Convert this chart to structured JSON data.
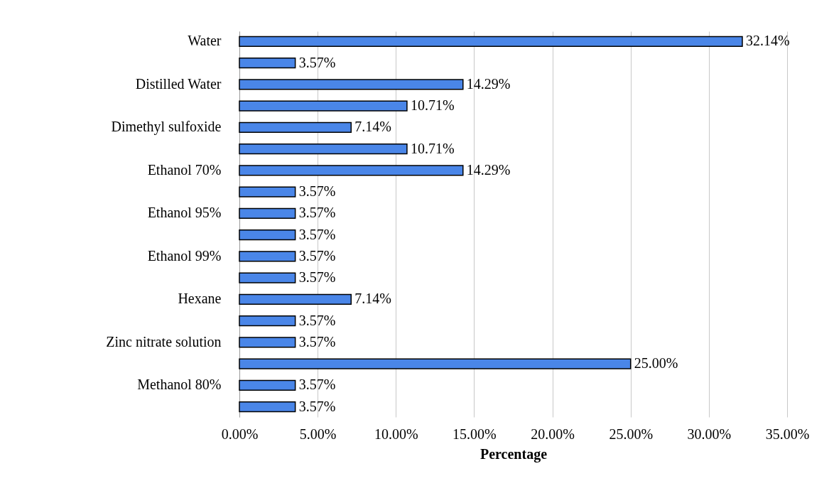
{
  "chart_data": {
    "type": "bar",
    "orientation": "horizontal",
    "xlabel": "Percentage",
    "categories": [
      "Water",
      null,
      "Distilled Water",
      null,
      "Dimethyl sulfoxide",
      null,
      "Ethanol 70%",
      null,
      "Ethanol 95%",
      null,
      "Ethanol 99%",
      null,
      "Hexane",
      null,
      "Zinc nitrate solution",
      null,
      "Methanol 80%",
      null
    ],
    "values": [
      32.14,
      3.57,
      14.29,
      10.71,
      7.14,
      10.71,
      14.29,
      3.57,
      3.57,
      3.57,
      3.57,
      3.57,
      7.14,
      3.57,
      3.57,
      25.0,
      3.57,
      3.57
    ],
    "value_labels": [
      "32.14%",
      "3.57%",
      "14.29%",
      "10.71%",
      "7.14%",
      "10.71%",
      "14.29%",
      "3.57%",
      "3.57%",
      "3.57%",
      "3.57%",
      "3.57%",
      "7.14%",
      "3.57%",
      "3.57%",
      "25.00%",
      "3.57%",
      "3.57%"
    ],
    "color": "#4a86e8",
    "xlim": [
      0,
      35
    ],
    "xticks": [
      {
        "value": 0,
        "label": "0.00%"
      },
      {
        "value": 5,
        "label": "5.00%"
      },
      {
        "value": 10,
        "label": "10.00%"
      },
      {
        "value": 15,
        "label": "15.00%"
      },
      {
        "value": 20,
        "label": "20.00%"
      },
      {
        "value": 25,
        "label": "25.00%"
      },
      {
        "value": 30,
        "label": "30.00%"
      },
      {
        "value": 35,
        "label": "35.00%"
      }
    ],
    "grid": "x"
  }
}
